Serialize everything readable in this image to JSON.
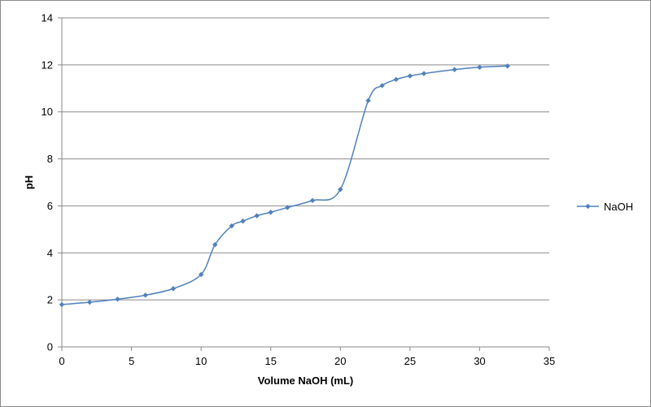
{
  "chart_data": {
    "type": "line",
    "title": "",
    "xlabel": "Volume NaOH (mL)",
    "ylabel": "pH",
    "xlim": [
      0,
      35
    ],
    "ylim": [
      0,
      14
    ],
    "x_ticks": [
      0,
      5,
      10,
      15,
      20,
      25,
      30,
      35
    ],
    "y_ticks": [
      0,
      2,
      4,
      6,
      8,
      10,
      12,
      14
    ],
    "grid": "horizontal",
    "legend_position": "right",
    "smooth": true,
    "series": [
      {
        "name": "NaOH",
        "color": "#4f81bd",
        "marker": "diamond",
        "points": [
          [
            0,
            1.8
          ],
          [
            2,
            1.9
          ],
          [
            4,
            2.03
          ],
          [
            6,
            2.2
          ],
          [
            8,
            2.48
          ],
          [
            10,
            3.08
          ],
          [
            11,
            4.35
          ],
          [
            12.2,
            5.15
          ],
          [
            13,
            5.35
          ],
          [
            14,
            5.58
          ],
          [
            15,
            5.73
          ],
          [
            16.2,
            5.93
          ],
          [
            18,
            6.23
          ],
          [
            20,
            6.7
          ],
          [
            22,
            10.48
          ],
          [
            23,
            11.12
          ],
          [
            24,
            11.38
          ],
          [
            25,
            11.53
          ],
          [
            26,
            11.63
          ],
          [
            28.2,
            11.8
          ],
          [
            30,
            11.9
          ],
          [
            32,
            11.95
          ]
        ]
      }
    ]
  }
}
